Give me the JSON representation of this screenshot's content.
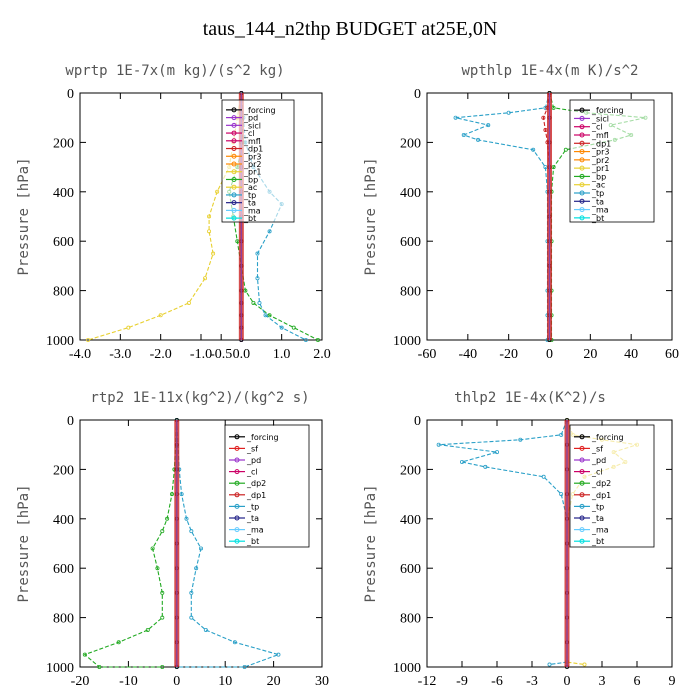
{
  "figure_title": "taus_144_n2thp  BUDGET at25E,0N",
  "colors": {
    "forcing": "#000000",
    "sf": "#e02020",
    "pd": "#9933cc",
    "sicl": "#9933cc",
    "cl": "#cc0066",
    "mfl": "#cc0066",
    "dp1": "#cc2222",
    "dp2": "#22aa22",
    "pr1": "#e8d030",
    "pr2": "#ff8800",
    "pr3": "#ff8800",
    "bp": "#22aa22",
    "ac": "#e8d030",
    "tp": "#2aa0c8",
    "ta": "#222288",
    "ma": "#66ccff",
    "bt": "#00e0e0"
  },
  "chart_data": [
    {
      "id": "wprtp",
      "type": "line",
      "title": "wprtp  1E-7x(m kg)/(s^2 kg)",
      "ylabel": "Pressure [hPa]",
      "xlim": [
        -4.0,
        2.0
      ],
      "ylim": [
        1000,
        0
      ],
      "xticks": [
        -4.0,
        -3.0,
        -2.0,
        -1.0,
        -0.5,
        0.0,
        1.0,
        2.0
      ],
      "xtick_labels": [
        "-4.0",
        "-3.0",
        "-2.0",
        "-1.0",
        "-0.5",
        "0.0",
        "1.0",
        "2.0"
      ],
      "yticks": [
        0,
        200,
        400,
        600,
        800,
        1000
      ],
      "legend": [
        "_forcing",
        "_pd",
        "_sicl",
        "_cl",
        "_mfl",
        "_dp1",
        "_pr3",
        "_pr2",
        "_pr1",
        "_bp",
        "_ac",
        "_tp",
        "_ta",
        "_ma",
        "_bt"
      ],
      "series": [
        {
          "name": "_pr1",
          "color_key": "pr1",
          "x": [
            0,
            -0.1,
            -0.2,
            -0.3,
            -0.6,
            -0.8,
            -0.8,
            -0.7,
            -0.9,
            -1.3,
            -2.0,
            -2.8,
            -3.8
          ],
          "y": [
            0,
            100,
            200,
            300,
            400,
            500,
            560,
            650,
            750,
            850,
            900,
            950,
            1000
          ]
        },
        {
          "name": "_bp",
          "color_key": "bp",
          "x": [
            0,
            0,
            0.05,
            -0.1,
            -0.3,
            -0.2,
            -0.1,
            0,
            0.1,
            0.3,
            0.7,
            1.3,
            1.9
          ],
          "y": [
            0,
            100,
            200,
            300,
            400,
            500,
            600,
            700,
            800,
            850,
            900,
            950,
            1000
          ]
        },
        {
          "name": "_tp",
          "color_key": "tp",
          "x": [
            0,
            0.05,
            0.1,
            0.3,
            0.7,
            1.0,
            0.7,
            0.4,
            0.4,
            0.45,
            0.6,
            1.0,
            1.6
          ],
          "y": [
            0,
            100,
            200,
            300,
            400,
            450,
            560,
            650,
            750,
            850,
            900,
            950,
            1000
          ]
        },
        {
          "name": "_pd",
          "color_key": "pd",
          "x": [
            0,
            0,
            0,
            0,
            0,
            0,
            0,
            0,
            0,
            0,
            0,
            0,
            0
          ],
          "y": [
            0,
            100,
            200,
            300,
            400,
            500,
            600,
            700,
            800,
            850,
            900,
            950,
            1000
          ]
        },
        {
          "name": "_forcing",
          "color_key": "forcing",
          "x": [
            0,
            0,
            0,
            0,
            0,
            0,
            0,
            0,
            0,
            0,
            0,
            0,
            0
          ],
          "y": [
            0,
            100,
            200,
            300,
            400,
            500,
            600,
            700,
            800,
            850,
            900,
            950,
            1000
          ]
        }
      ]
    },
    {
      "id": "wpthlp",
      "type": "line",
      "title": "wpthlp  1E-4x(m K)/s^2",
      "ylabel": "Pressure [hPa]",
      "xlim": [
        -60,
        60
      ],
      "ylim": [
        1000,
        0
      ],
      "xticks": [
        -60,
        -40,
        -20,
        0,
        20,
        40,
        60
      ],
      "xtick_labels": [
        "-60",
        "-40",
        "-20",
        "0",
        "20",
        "40",
        "60"
      ],
      "yticks": [
        0,
        200,
        400,
        600,
        800,
        1000
      ],
      "legend": [
        "_forcing",
        "_sicl",
        "_cl",
        "_mfl",
        "_dp1",
        "_pr3",
        "_pr2",
        "_pr1",
        "_bp",
        "_ac",
        "_tp",
        "_ta",
        "_ma",
        "_bt"
      ],
      "series": [
        {
          "name": "_tp",
          "color_key": "tp",
          "x": [
            0,
            -2,
            -20,
            -46,
            -30,
            -42,
            -35,
            -8,
            -2,
            -1,
            -1,
            -1,
            -1,
            -1
          ],
          "y": [
            0,
            60,
            80,
            100,
            130,
            170,
            190,
            230,
            300,
            400,
            600,
            800,
            900,
            1000
          ]
        },
        {
          "name": "_bp",
          "color_key": "bp",
          "x": [
            0,
            2,
            18,
            47,
            30,
            40,
            32,
            8,
            2,
            1,
            1,
            1,
            1,
            1
          ],
          "y": [
            0,
            60,
            80,
            100,
            130,
            170,
            190,
            230,
            300,
            400,
            600,
            800,
            900,
            1000
          ]
        },
        {
          "name": "_dp1",
          "color_key": "dp1",
          "x": [
            0,
            -1,
            -3,
            -2,
            -1,
            0,
            0
          ],
          "y": [
            0,
            60,
            100,
            150,
            200,
            300,
            1000
          ]
        },
        {
          "name": "_forcing",
          "color_key": "forcing",
          "x": [
            0,
            0,
            0,
            0,
            0,
            0,
            0,
            0,
            0,
            0,
            0
          ],
          "y": [
            0,
            100,
            200,
            300,
            400,
            500,
            600,
            700,
            800,
            900,
            1000
          ]
        }
      ]
    },
    {
      "id": "rtp2",
      "type": "line",
      "title": "rtp2  1E-11x(kg^2)/(kg^2 s)",
      "ylabel": "Pressure [hPa]",
      "xlim": [
        -20,
        30
      ],
      "ylim": [
        1000,
        0
      ],
      "xticks": [
        -20,
        -10,
        0,
        10,
        20,
        30
      ],
      "xtick_labels": [
        "-20",
        "-10",
        "0",
        "10",
        "20",
        "30"
      ],
      "yticks": [
        0,
        200,
        400,
        600,
        800,
        1000
      ],
      "legend": [
        "_forcing",
        "_sf",
        "_pd",
        "_cl",
        "_dp2",
        "_dp1",
        "_tp",
        "_ta",
        "_ma",
        "_bt"
      ],
      "series": [
        {
          "name": "_dp1",
          "color_key": "dp2",
          "x": [
            0,
            -0.5,
            -1,
            -2,
            -3,
            -5,
            -4,
            -3,
            -3,
            -6,
            -12,
            -19,
            -16,
            -3
          ],
          "y": [
            0,
            200,
            300,
            400,
            450,
            520,
            600,
            700,
            800,
            850,
            900,
            950,
            1000,
            1000
          ]
        },
        {
          "name": "_tp",
          "color_key": "tp",
          "x": [
            0,
            0.5,
            1,
            2,
            3,
            5,
            4,
            3,
            3,
            6,
            12,
            21,
            14,
            0
          ],
          "y": [
            0,
            200,
            300,
            400,
            450,
            520,
            600,
            700,
            800,
            850,
            900,
            950,
            1000,
            1000
          ]
        },
        {
          "name": "_forcing",
          "color_key": "forcing",
          "x": [
            0,
            0,
            0,
            0,
            0,
            0,
            0,
            0,
            0,
            0,
            0
          ],
          "y": [
            0,
            100,
            200,
            300,
            400,
            500,
            600,
            700,
            800,
            900,
            1000
          ]
        }
      ]
    },
    {
      "id": "thlp2",
      "type": "line",
      "title": "thlp2  1E-4x(K^2)/s",
      "ylabel": "Pressure [hPa]",
      "xlim": [
        -12,
        9
      ],
      "ylim": [
        1000,
        0
      ],
      "xticks": [
        -12,
        -9,
        -6,
        -3,
        0,
        3,
        6,
        9
      ],
      "xtick_labels": [
        "-12",
        "-9",
        "-6",
        "-3",
        "0",
        "3",
        "6",
        "9"
      ],
      "yticks": [
        0,
        200,
        400,
        600,
        800,
        1000
      ],
      "legend": [
        "_forcing",
        "_sf",
        "_pd",
        "_cl",
        "_dp2",
        "_dp1",
        "_tp",
        "_ta",
        "_ma",
        "_bt"
      ],
      "series": [
        {
          "name": "_tp",
          "color_key": "tp",
          "x": [
            0,
            -0.5,
            -4,
            -11,
            -6,
            -9,
            -7,
            -2,
            -0.5,
            0,
            0,
            0,
            -1.5
          ],
          "y": [
            0,
            60,
            80,
            100,
            130,
            170,
            190,
            230,
            300,
            400,
            800,
            980,
            990
          ]
        },
        {
          "name": "_pd",
          "color_key": "ac",
          "x": [
            0,
            0.5,
            3,
            6,
            4,
            5,
            4,
            1.5,
            0.5,
            0,
            0,
            0,
            1.5
          ],
          "y": [
            0,
            60,
            80,
            100,
            130,
            170,
            190,
            230,
            300,
            400,
            800,
            980,
            990
          ]
        },
        {
          "name": "_forcing",
          "color_key": "forcing",
          "x": [
            0,
            0,
            0,
            0,
            0,
            0,
            0,
            0,
            0,
            0,
            0
          ],
          "y": [
            0,
            100,
            200,
            300,
            400,
            500,
            600,
            700,
            800,
            900,
            1000
          ]
        }
      ]
    }
  ]
}
